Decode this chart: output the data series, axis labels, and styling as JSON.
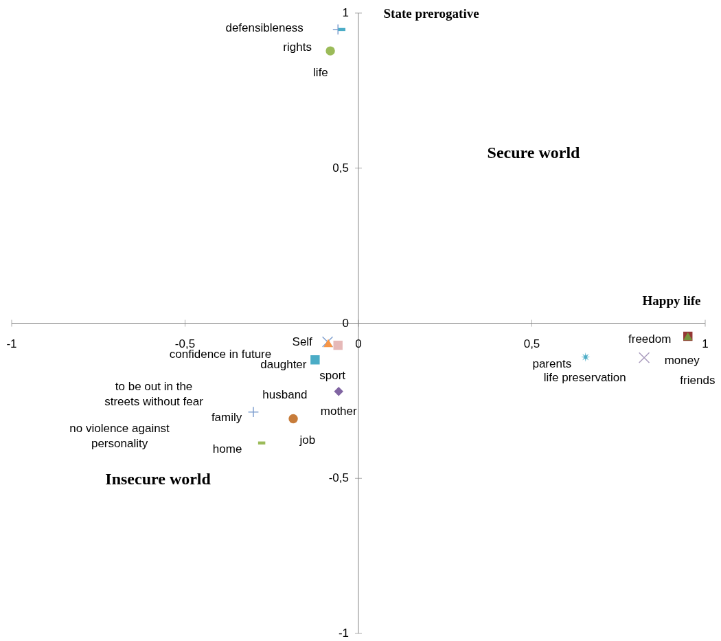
{
  "chart_data": {
    "type": "scatter",
    "xlim": [
      -1,
      1
    ],
    "ylim": [
      -1,
      1
    ],
    "xticks": [
      -1,
      {
        "value": -0.5,
        "label": "-0,5"
      },
      0,
      {
        "value": 0.5,
        "label": "0,5"
      },
      1
    ],
    "yticks": [
      -1,
      {
        "value": -0.5,
        "label": "-0,5"
      },
      0,
      {
        "value": 0.5,
        "label": "0,5"
      },
      1
    ],
    "grid": false,
    "series": [
      {
        "color": "#7f9fcf",
        "marker": "cross",
        "x": [
          -0.059
        ],
        "values": [
          0.947
        ]
      },
      {
        "color": "#4bacc6",
        "x": [
          -0.048
        ],
        "values": [
          0.947
        ]
      },
      {
        "color": "#9bbb59",
        "marker": "circle",
        "x": [
          -0.081
        ],
        "values": [
          0.878
        ]
      },
      {
        "color": "#7f9fcf",
        "marker": "x",
        "x": [
          -0.089
        ],
        "values": [
          -0.06
        ]
      },
      {
        "color": "#f79646",
        "marker": "triangle",
        "x": [
          -0.087
        ],
        "values": [
          -0.064
        ]
      },
      {
        "color": "#e6b9b8",
        "marker": "square",
        "x": [
          -0.059
        ],
        "values": [
          -0.071
        ]
      },
      {
        "color": "#4bacc6",
        "marker": "square",
        "x": [
          -0.125
        ],
        "values": [
          -0.118
        ]
      },
      {
        "color": "#8064a2",
        "marker": "diamond",
        "x": [
          -0.057
        ],
        "values": [
          -0.22
        ]
      },
      {
        "color": "#7f9fcf",
        "marker": "cross",
        "x": [
          -0.303
        ],
        "values": [
          -0.286
        ]
      },
      {
        "color": "#c77c3a",
        "marker": "circle",
        "x": [
          -0.188
        ],
        "values": [
          -0.308
        ]
      },
      {
        "color": "#9bbb59",
        "x": [
          -0.279
        ],
        "values": [
          -0.386
        ]
      },
      {
        "color": "#4bacc6",
        "marker": "star",
        "x": [
          0.655
        ],
        "values": [
          -0.109
        ]
      },
      {
        "color": "#a99bbd",
        "marker": "x",
        "x": [
          0.824
        ],
        "values": [
          -0.111
        ]
      },
      {
        "color": "#953735",
        "marker": "square",
        "x": [
          0.95
        ],
        "values": [
          -0.042
        ]
      },
      {
        "color": "#77933c",
        "marker": "triangle",
        "x": [
          0.95
        ],
        "values": [
          -0.042
        ]
      }
    ],
    "annotations": [
      "State prerogative",
      "Secure world",
      "Happy life",
      "Insecure world",
      "defensibleness",
      "rights",
      "life",
      "Self",
      "confidence in future",
      "daughter",
      "sport",
      "to be out in the\nstreets without fear",
      "husband",
      "mother",
      "family",
      "no violence against\npersonality",
      "job",
      "home",
      "freedom",
      "parents",
      "money",
      "life preservation",
      "friends"
    ]
  }
}
